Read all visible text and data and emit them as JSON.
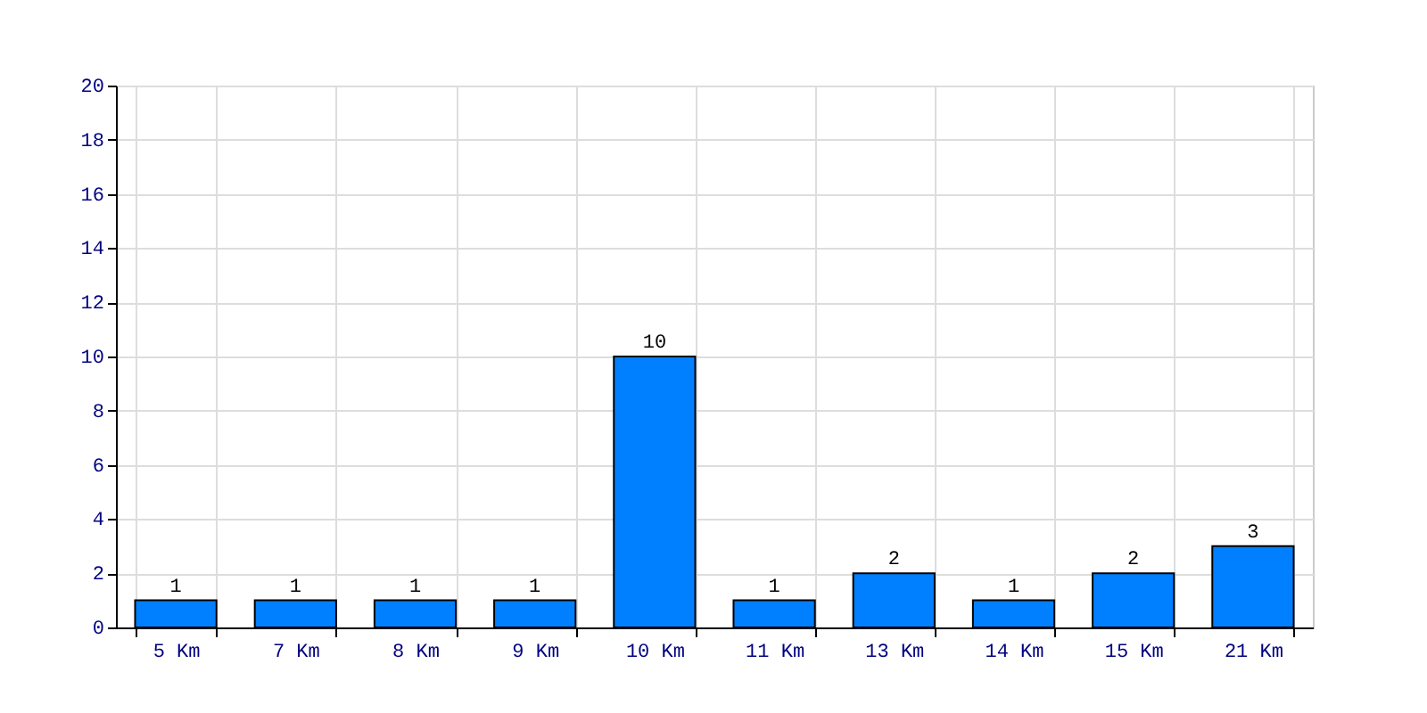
{
  "chart_data": {
    "type": "bar",
    "categories": [
      "5 Km",
      "7 Km",
      "8 Km",
      "9 Km",
      "10 Km",
      "11 Km",
      "13 Km",
      "14 Km",
      "15 Km",
      "21 Km"
    ],
    "values": [
      1,
      1,
      1,
      1,
      10,
      1,
      2,
      1,
      2,
      3
    ],
    "color": "#0080ff",
    "ylim": [
      0,
      20
    ],
    "yticks": [
      0,
      2,
      4,
      6,
      8,
      10,
      12,
      14,
      16,
      18,
      20
    ],
    "grid": true,
    "data_labels": true
  }
}
